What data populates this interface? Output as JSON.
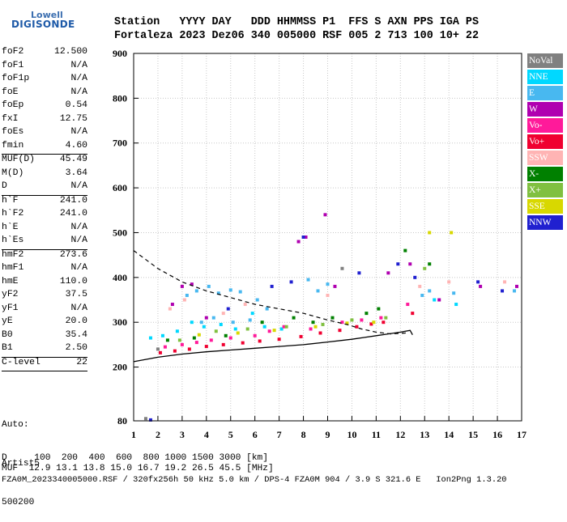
{
  "logo": {
    "line1": "Lowell",
    "line2": "DIGISONDE"
  },
  "header": {
    "line1": "Station   YYYY DAY   DDD HHMMSS P1  FFS S AXN PPS IGA PS",
    "line2": "Fortaleza 2023 Dez06 340 005000 RSF 005 2 713 100 10+ 22"
  },
  "params": [
    {
      "k": "foF2",
      "v": "12.500"
    },
    {
      "k": "foF1",
      "v": "N/A"
    },
    {
      "k": "foF1p",
      "v": "N/A"
    },
    {
      "k": "foE",
      "v": "N/A"
    },
    {
      "k": "foEp",
      "v": "0.54"
    },
    {
      "k": "fxI",
      "v": "12.75"
    },
    {
      "k": "foEs",
      "v": "N/A"
    },
    {
      "k": "fmin",
      "v": "4.60",
      "sep": true
    },
    {
      "k": "MUF(D)",
      "v": "45.49"
    },
    {
      "k": "M(D)",
      "v": "3.64"
    },
    {
      "k": "D",
      "v": "N/A",
      "sep": true
    },
    {
      "k": "h`F",
      "v": "241.0"
    },
    {
      "k": "h`F2",
      "v": "241.0"
    },
    {
      "k": "h`E",
      "v": "N/A"
    },
    {
      "k": "h`Es",
      "v": "N/A",
      "sep": true
    },
    {
      "k": "hmF2",
      "v": "273.6"
    },
    {
      "k": "hmF1",
      "v": "N/A"
    },
    {
      "k": "hmE",
      "v": "110.0"
    },
    {
      "k": "yF2",
      "v": "37.5"
    },
    {
      "k": "yF1",
      "v": "N/A"
    },
    {
      "k": "yE",
      "v": "20.0"
    },
    {
      "k": "B0",
      "v": "35.4"
    },
    {
      "k": "B1",
      "v": "2.50",
      "sep": true
    },
    {
      "k": "C-level",
      "v": "22",
      "sep": true
    }
  ],
  "auto": {
    "line1": "Auto:",
    "line2": "Artist5",
    "line3": "500200"
  },
  "footer": {
    "line1": "D     100  200  400  600  800 1000 1500 3000 [km]",
    "line2": "MUF  12.9 13.1 13.8 15.0 16.7 19.2 26.5 45.5 [MHz]",
    "line3": "FZA0M_2023340005000.RSF / 320fx256h 50 kHz 5.0 km / DPS-4 FZA0M 904 / 3.9 S 321.6 E   Ion2Png 1.3.20"
  },
  "legend": [
    {
      "label": "NoVal",
      "color": "#808080"
    },
    {
      "label": "NNE",
      "color": "#00d8ff"
    },
    {
      "label": "E",
      "color": "#48b8f0"
    },
    {
      "label": "W",
      "color": "#b000b0"
    },
    {
      "label": "Vo-",
      "color": "#ff1a9a"
    },
    {
      "label": "Vo+",
      "color": "#f00030"
    },
    {
      "label": "SSW",
      "color": "#ffb4b4"
    },
    {
      "label": "X-",
      "color": "#008000"
    },
    {
      "label": "X+",
      "color": "#80c040"
    },
    {
      "label": "SSE",
      "color": "#d8d800"
    },
    {
      "label": "NNW",
      "color": "#2020d0"
    }
  ],
  "chart_data": {
    "type": "scatter",
    "title": "",
    "xlabel": "",
    "ylabel": "",
    "xlim": [
      1,
      17
    ],
    "ylim": [
      80,
      900
    ],
    "x_ticks": [
      1,
      2,
      3,
      4,
      5,
      6,
      7,
      8,
      9,
      10,
      11,
      12,
      13,
      14,
      15,
      16,
      17
    ],
    "y_ticks": [
      80,
      200,
      300,
      400,
      500,
      600,
      700,
      800,
      900
    ],
    "grid": true,
    "series": [
      {
        "name": "E",
        "color": "#48b8f0",
        "points": [
          [
            3.2,
            360
          ],
          [
            3.6,
            370
          ],
          [
            4.1,
            380
          ],
          [
            4.5,
            365
          ],
          [
            5.0,
            372
          ],
          [
            5.4,
            368
          ],
          [
            6.1,
            350
          ],
          [
            6.5,
            330
          ],
          [
            3.8,
            300
          ],
          [
            4.3,
            310
          ],
          [
            5.1,
            300
          ],
          [
            5.8,
            305
          ],
          [
            8.2,
            395
          ],
          [
            8.6,
            370
          ],
          [
            9.0,
            385
          ],
          [
            12.9,
            360
          ],
          [
            13.2,
            370
          ],
          [
            14.2,
            365
          ],
          [
            16.7,
            370
          ]
        ]
      },
      {
        "name": "NNE",
        "color": "#00d8ff",
        "points": [
          [
            1.7,
            265
          ],
          [
            2.2,
            270
          ],
          [
            2.8,
            280
          ],
          [
            3.4,
            300
          ],
          [
            3.9,
            290
          ],
          [
            4.6,
            295
          ],
          [
            5.2,
            285
          ],
          [
            5.9,
            320
          ],
          [
            6.4,
            290
          ],
          [
            7.1,
            285
          ],
          [
            13.4,
            350
          ],
          [
            14.3,
            340
          ]
        ]
      },
      {
        "name": "W",
        "color": "#b000b0",
        "points": [
          [
            2.6,
            340
          ],
          [
            3.0,
            380
          ],
          [
            3.4,
            385
          ],
          [
            4.0,
            310
          ],
          [
            7.8,
            480
          ],
          [
            8.1,
            490
          ],
          [
            8.9,
            540
          ],
          [
            9.3,
            380
          ],
          [
            11.5,
            410
          ],
          [
            12.4,
            430
          ],
          [
            13.6,
            350
          ],
          [
            15.3,
            380
          ],
          [
            16.8,
            380
          ]
        ]
      },
      {
        "name": "Vo-",
        "color": "#ff1a9a",
        "points": [
          [
            2.3,
            245
          ],
          [
            3.0,
            250
          ],
          [
            3.6,
            255
          ],
          [
            4.2,
            260
          ],
          [
            5.0,
            265
          ],
          [
            6.0,
            270
          ],
          [
            6.6,
            280
          ],
          [
            7.2,
            290
          ],
          [
            8.3,
            285
          ],
          [
            9.6,
            300
          ],
          [
            10.4,
            305
          ],
          [
            11.2,
            310
          ],
          [
            12.3,
            340
          ]
        ]
      },
      {
        "name": "Vo+",
        "color": "#f00030",
        "points": [
          [
            2.1,
            232
          ],
          [
            2.7,
            236
          ],
          [
            3.3,
            240
          ],
          [
            4.0,
            246
          ],
          [
            4.7,
            250
          ],
          [
            5.5,
            254
          ],
          [
            6.2,
            258
          ],
          [
            7.0,
            262
          ],
          [
            7.9,
            268
          ],
          [
            8.7,
            276
          ],
          [
            9.5,
            282
          ],
          [
            10.2,
            290
          ],
          [
            10.8,
            296
          ],
          [
            11.3,
            300
          ],
          [
            12.5,
            320
          ]
        ]
      },
      {
        "name": "SSW",
        "color": "#ffb4b4",
        "points": [
          [
            2.5,
            330
          ],
          [
            3.1,
            350
          ],
          [
            4.7,
            320
          ],
          [
            5.6,
            340
          ],
          [
            9.0,
            360
          ],
          [
            12.8,
            380
          ],
          [
            14.0,
            390
          ],
          [
            16.3,
            390
          ]
        ]
      },
      {
        "name": "X-",
        "color": "#008000",
        "points": [
          [
            2.4,
            260
          ],
          [
            3.5,
            265
          ],
          [
            4.8,
            270
          ],
          [
            6.3,
            300
          ],
          [
            7.6,
            310
          ],
          [
            8.4,
            300
          ],
          [
            9.2,
            310
          ],
          [
            10.6,
            320
          ],
          [
            11.1,
            330
          ],
          [
            12.2,
            460
          ],
          [
            13.2,
            430
          ]
        ]
      },
      {
        "name": "X+",
        "color": "#80c040",
        "points": [
          [
            2.9,
            260
          ],
          [
            4.4,
            280
          ],
          [
            5.7,
            285
          ],
          [
            7.3,
            290
          ],
          [
            8.8,
            295
          ],
          [
            10.0,
            305
          ],
          [
            11.4,
            310
          ],
          [
            13.0,
            420
          ]
        ]
      },
      {
        "name": "SSE",
        "color": "#d8d800",
        "points": [
          [
            3.7,
            272
          ],
          [
            5.3,
            276
          ],
          [
            6.8,
            282
          ],
          [
            8.5,
            290
          ],
          [
            9.8,
            298
          ],
          [
            10.9,
            300
          ],
          [
            13.2,
            500
          ],
          [
            14.1,
            500
          ]
        ]
      },
      {
        "name": "NNW",
        "color": "#2020d0",
        "points": [
          [
            4.9,
            330
          ],
          [
            6.7,
            380
          ],
          [
            7.5,
            390
          ],
          [
            8.0,
            490
          ],
          [
            10.3,
            410
          ],
          [
            11.9,
            430
          ],
          [
            12.6,
            400
          ],
          [
            15.2,
            390
          ],
          [
            16.2,
            370
          ],
          [
            1.7,
            82
          ]
        ]
      },
      {
        "name": "NoVal",
        "color": "#808080",
        "points": [
          [
            1.5,
            85
          ],
          [
            2.0,
            240
          ],
          [
            9.6,
            420
          ]
        ]
      }
    ],
    "profile_curve": [
      [
        1.0,
        460
      ],
      [
        2.0,
        420
      ],
      [
        3.0,
        390
      ],
      [
        4.0,
        370
      ],
      [
        5.0,
        355
      ],
      [
        6.0,
        340
      ],
      [
        7.0,
        330
      ],
      [
        8.0,
        320
      ],
      [
        9.0,
        305
      ],
      [
        9.8,
        295
      ],
      [
        10.4,
        285
      ],
      [
        11.0,
        278
      ],
      [
        11.6,
        274
      ],
      [
        12.2,
        276
      ],
      [
        12.3,
        280
      ]
    ],
    "trace_curve": [
      [
        1.0,
        212
      ],
      [
        2.0,
        222
      ],
      [
        3.0,
        229
      ],
      [
        4.0,
        234
      ],
      [
        5.0,
        238
      ],
      [
        6.0,
        242
      ],
      [
        7.0,
        246
      ],
      [
        8.0,
        250
      ],
      [
        9.0,
        256
      ],
      [
        10.0,
        262
      ],
      [
        10.5,
        266
      ],
      [
        11.0,
        270
      ],
      [
        11.5,
        274
      ],
      [
        12.0,
        278
      ],
      [
        12.4,
        282
      ],
      [
        12.5,
        272
      ]
    ]
  }
}
